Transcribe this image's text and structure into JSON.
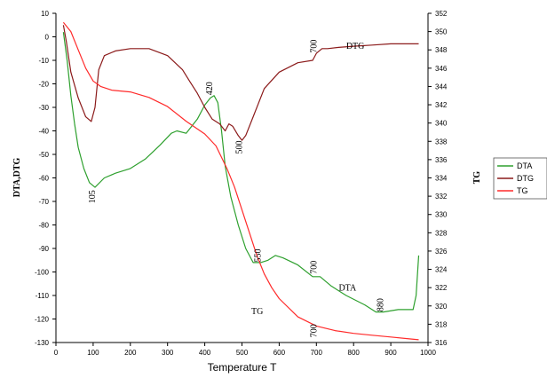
{
  "chart_data": {
    "type": "line",
    "xlabel": "Temperature T",
    "ylabel_left": "DTA,DTG",
    "ylabel_right": "TG",
    "xlim": [
      0,
      1000
    ],
    "xticks": [
      0,
      100,
      200,
      300,
      400,
      500,
      600,
      700,
      800,
      900,
      1000
    ],
    "ylim_left": [
      -130,
      10
    ],
    "yticks_left": [
      10,
      0,
      -10,
      -20,
      -30,
      -40,
      -50,
      -60,
      -70,
      -80,
      -90,
      -100,
      -110,
      -120,
      -130
    ],
    "ylim_right": [
      316,
      352
    ],
    "yticks_right": [
      352,
      350,
      348,
      346,
      344,
      342,
      340,
      338,
      336,
      334,
      332,
      330,
      328,
      326,
      324,
      322,
      320,
      318,
      316
    ],
    "grid": false,
    "legend_position": "right",
    "series": [
      {
        "name": "DTA",
        "axis": "left",
        "color": "#2ea02e",
        "x": [
          20,
          30,
          40,
          50,
          60,
          75,
          90,
          105,
          130,
          160,
          200,
          240,
          280,
          310,
          325,
          350,
          380,
          400,
          415,
          425,
          435,
          445,
          455,
          470,
          490,
          510,
          530,
          550,
          570,
          590,
          610,
          650,
          690,
          710,
          740,
          780,
          830,
          860,
          880,
          920,
          960,
          968,
          975
        ],
        "values": [
          2,
          -10,
          -25,
          -37,
          -47,
          -56,
          -62,
          -64,
          -60,
          -58,
          -56,
          -52,
          -46,
          -41,
          -40,
          -41,
          -35,
          -29,
          -26,
          -25,
          -28,
          -40,
          -55,
          -68,
          -80,
          -90,
          -96,
          -96,
          -95,
          -93,
          -94,
          -97,
          -102,
          -102,
          -106,
          -110,
          -114,
          -117,
          -117,
          -116,
          -116,
          -110,
          -93
        ]
      },
      {
        "name": "DTG",
        "axis": "left",
        "color": "#8b1a1a",
        "x": [
          20,
          28,
          40,
          60,
          80,
          95,
          105,
          115,
          130,
          160,
          200,
          250,
          300,
          340,
          360,
          380,
          400,
          420,
          440,
          455,
          465,
          475,
          490,
          500,
          510,
          530,
          560,
          600,
          650,
          690,
          700,
          715,
          730,
          760,
          800,
          850,
          900,
          950,
          975
        ],
        "values": [
          5,
          -2,
          -15,
          -26,
          -34,
          -36,
          -30,
          -14,
          -8,
          -6,
          -5,
          -5,
          -8,
          -14,
          -19,
          -24,
          -30,
          -35,
          -37,
          -40,
          -37,
          -38,
          -42,
          -44,
          -42,
          -34,
          -22,
          -15,
          -11,
          -10,
          -7,
          -5,
          -5,
          -4.5,
          -4,
          -3.5,
          -3,
          -3,
          -3
        ]
      },
      {
        "name": "TG",
        "axis": "right",
        "color": "#ff2a2a",
        "x": [
          20,
          40,
          60,
          80,
          100,
          120,
          150,
          200,
          250,
          300,
          350,
          400,
          430,
          460,
          480,
          500,
          520,
          540,
          560,
          580,
          600,
          650,
          700,
          750,
          800,
          850,
          900,
          950,
          975
        ],
        "values": [
          351,
          350,
          348,
          346,
          344.6,
          344,
          343.6,
          343.4,
          342.8,
          341.8,
          340.2,
          338.8,
          337.5,
          335,
          333,
          330.5,
          328,
          325.5,
          323.5,
          322,
          320.8,
          318.8,
          317.8,
          317.3,
          317,
          316.8,
          316.6,
          316.4,
          316.3
        ]
      }
    ],
    "annotations": [
      {
        "text": "105",
        "x": 105,
        "y": -68,
        "rotate": -90
      },
      {
        "text": "420",
        "x": 420,
        "y": -22,
        "rotate": -90
      },
      {
        "text": "500",
        "x": 500,
        "y": -47,
        "rotate": -90
      },
      {
        "text": "550",
        "x": 550,
        "y": -93,
        "rotate": -90
      },
      {
        "text": "700",
        "x": 700,
        "y": -4,
        "rotate": -90
      },
      {
        "text": "700",
        "x": 700,
        "y": -98,
        "rotate": -90
      },
      {
        "text": "880",
        "x": 880,
        "y": -114,
        "rotate": -90
      },
      {
        "text": "700",
        "x": 700,
        "y": -125,
        "rotate": -90
      },
      {
        "text": "DTG",
        "x": 780,
        "y": -5,
        "rotate": 0
      },
      {
        "text": "DTA",
        "x": 760,
        "y": -108,
        "rotate": 0
      },
      {
        "text": "TG",
        "x": 525,
        "y": -118,
        "rotate": 0
      }
    ]
  }
}
